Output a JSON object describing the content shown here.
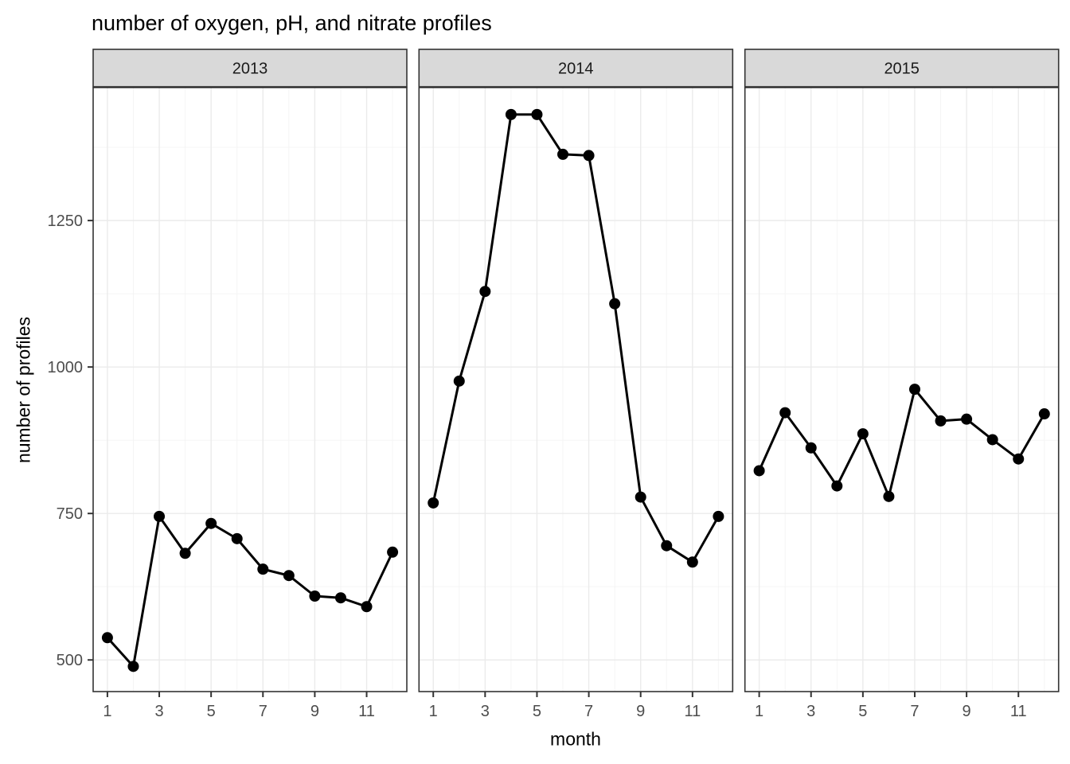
{
  "figure": {
    "title": "number of oxygen, pH, and nitrate profiles"
  },
  "chart_data": {
    "type": "line",
    "title": "number of oxygen, pH, and nitrate profiles",
    "xlabel": "month",
    "ylabel": "number of profiles",
    "facet_variable": "year",
    "x": [
      1,
      2,
      3,
      4,
      5,
      6,
      7,
      8,
      9,
      10,
      11,
      12
    ],
    "facets": [
      {
        "label": "2013",
        "values": [
          538,
          489,
          745,
          682,
          733,
          707,
          655,
          644,
          609,
          606,
          591,
          684
        ]
      },
      {
        "label": "2014",
        "values": [
          768,
          976,
          1129,
          1431,
          1431,
          1363,
          1361,
          1108,
          778,
          695,
          667,
          745
        ]
      },
      {
        "label": "2015",
        "values": [
          823,
          922,
          862,
          797,
          886,
          779,
          962,
          908,
          911,
          876,
          843,
          920
        ]
      }
    ],
    "x_ticks": [
      1,
      3,
      5,
      7,
      9,
      11
    ],
    "y_ticks": [
      500,
      750,
      1000,
      1250
    ],
    "x_minor_breaks": [
      2,
      4,
      6,
      8,
      10,
      12
    ],
    "y_minor_breaks": [
      625,
      875,
      1125,
      1375
    ],
    "xlim": [
      0.45,
      12.55
    ],
    "ylim": [
      446,
      1477
    ],
    "grid": true,
    "legend": "none",
    "style": {
      "line_color": "#000000",
      "point_color": "#000000",
      "panel_bg": "#FFFFFF",
      "panel_border": "#333333",
      "grid_major": "#EBEBEB",
      "grid_minor": "#F4F4F4",
      "strip_bg": "#D9D9D9",
      "strip_text": "#1A1A1A",
      "axis_text": "#4D4D4D",
      "tick_mark": "#333333"
    }
  }
}
